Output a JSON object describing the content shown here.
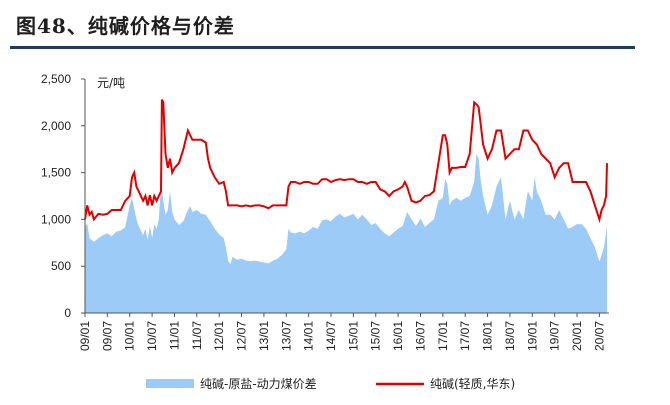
{
  "header": {
    "title": "图48、纯碱价格与价差"
  },
  "chart_data": {
    "type": "area+line",
    "unit_label": "元/吨",
    "ylim": [
      0,
      2500
    ],
    "yticks": [
      "0",
      "500",
      "1,000",
      "1,500",
      "2,000",
      "2,500"
    ],
    "ytick_values": [
      0,
      500,
      1000,
      1500,
      2000,
      2500
    ],
    "xlim": [
      2009.0,
      2020.67
    ],
    "xticks": [
      "09/01",
      "09/07",
      "10/01",
      "10/07",
      "11/01",
      "11/07",
      "12/01",
      "12/07",
      "13/01",
      "13/07",
      "14/01",
      "14/07",
      "15/01",
      "15/07",
      "16/01",
      "16/07",
      "17/01",
      "17/07",
      "18/01",
      "18/07",
      "19/01",
      "19/07",
      "20/01",
      "20/07"
    ],
    "xtick_values": [
      2009.0,
      2009.5,
      2010.0,
      2010.5,
      2011.0,
      2011.5,
      2012.0,
      2012.5,
      2013.0,
      2013.5,
      2014.0,
      2014.5,
      2015.0,
      2015.5,
      2016.0,
      2016.5,
      2017.0,
      2017.5,
      2018.0,
      2018.5,
      2019.0,
      2019.5,
      2020.0,
      2020.5
    ],
    "series": [
      {
        "name": "纯碱-原盐-动力煤价差",
        "type": "area",
        "color": "#9ccbf7",
        "points": [
          [
            2009.0,
            920
          ],
          [
            2009.05,
            960
          ],
          [
            2009.1,
            800
          ],
          [
            2009.2,
            760
          ],
          [
            2009.3,
            800
          ],
          [
            2009.4,
            830
          ],
          [
            2009.5,
            850
          ],
          [
            2009.6,
            820
          ],
          [
            2009.7,
            870
          ],
          [
            2009.8,
            880
          ],
          [
            2009.9,
            920
          ],
          [
            2010.0,
            1150
          ],
          [
            2010.05,
            1230
          ],
          [
            2010.1,
            1120
          ],
          [
            2010.15,
            1000
          ],
          [
            2010.2,
            930
          ],
          [
            2010.3,
            830
          ],
          [
            2010.35,
            900
          ],
          [
            2010.4,
            780
          ],
          [
            2010.45,
            930
          ],
          [
            2010.5,
            800
          ],
          [
            2010.55,
            950
          ],
          [
            2010.6,
            900
          ],
          [
            2010.65,
            1000
          ],
          [
            2010.7,
            1380
          ],
          [
            2010.75,
            1200
          ],
          [
            2010.8,
            1050
          ],
          [
            2010.85,
            1100
          ],
          [
            2010.9,
            1300
          ],
          [
            2010.95,
            1080
          ],
          [
            2011.0,
            1000
          ],
          [
            2011.1,
            940
          ],
          [
            2011.2,
            980
          ],
          [
            2011.3,
            1100
          ],
          [
            2011.35,
            1140
          ],
          [
            2011.4,
            1080
          ],
          [
            2011.5,
            1100
          ],
          [
            2011.6,
            1060
          ],
          [
            2011.7,
            1050
          ],
          [
            2011.8,
            980
          ],
          [
            2011.9,
            900
          ],
          [
            2012.0,
            840
          ],
          [
            2012.1,
            800
          ],
          [
            2012.15,
            700
          ],
          [
            2012.2,
            560
          ],
          [
            2012.25,
            520
          ],
          [
            2012.3,
            600
          ],
          [
            2012.4,
            570
          ],
          [
            2012.5,
            580
          ],
          [
            2012.6,
            560
          ],
          [
            2012.7,
            555
          ],
          [
            2012.8,
            560
          ],
          [
            2012.9,
            550
          ],
          [
            2013.0,
            540
          ],
          [
            2013.1,
            530
          ],
          [
            2013.2,
            560
          ],
          [
            2013.3,
            580
          ],
          [
            2013.4,
            620
          ],
          [
            2013.5,
            680
          ],
          [
            2013.55,
            900
          ],
          [
            2013.6,
            860
          ],
          [
            2013.7,
            850
          ],
          [
            2013.8,
            870
          ],
          [
            2013.9,
            850
          ],
          [
            2014.0,
            880
          ],
          [
            2014.1,
            920
          ],
          [
            2014.2,
            900
          ],
          [
            2014.3,
            990
          ],
          [
            2014.4,
            1000
          ],
          [
            2014.5,
            980
          ],
          [
            2014.6,
            1030
          ],
          [
            2014.7,
            1060
          ],
          [
            2014.8,
            1020
          ],
          [
            2014.9,
            1040
          ],
          [
            2015.0,
            1060
          ],
          [
            2015.1,
            1000
          ],
          [
            2015.2,
            1050
          ],
          [
            2015.3,
            1000
          ],
          [
            2015.4,
            940
          ],
          [
            2015.5,
            960
          ],
          [
            2015.6,
            900
          ],
          [
            2015.7,
            850
          ],
          [
            2015.8,
            820
          ],
          [
            2015.9,
            860
          ],
          [
            2016.0,
            900
          ],
          [
            2016.1,
            930
          ],
          [
            2016.15,
            1000
          ],
          [
            2016.2,
            1080
          ],
          [
            2016.3,
            1000
          ],
          [
            2016.4,
            930
          ],
          [
            2016.5,
            1010
          ],
          [
            2016.6,
            920
          ],
          [
            2016.7,
            960
          ],
          [
            2016.8,
            1000
          ],
          [
            2016.9,
            1200
          ],
          [
            2017.0,
            1230
          ],
          [
            2017.05,
            1430
          ],
          [
            2017.1,
            1380
          ],
          [
            2017.15,
            1150
          ],
          [
            2017.2,
            1200
          ],
          [
            2017.3,
            1230
          ],
          [
            2017.4,
            1200
          ],
          [
            2017.5,
            1230
          ],
          [
            2017.6,
            1250
          ],
          [
            2017.7,
            1400
          ],
          [
            2017.75,
            1700
          ],
          [
            2017.8,
            1650
          ],
          [
            2017.85,
            1400
          ],
          [
            2017.9,
            1250
          ],
          [
            2018.0,
            1050
          ],
          [
            2018.1,
            1150
          ],
          [
            2018.2,
            1350
          ],
          [
            2018.3,
            1450
          ],
          [
            2018.4,
            1000
          ],
          [
            2018.5,
            1200
          ],
          [
            2018.6,
            1000
          ],
          [
            2018.7,
            1100
          ],
          [
            2018.8,
            1000
          ],
          [
            2018.9,
            1300
          ],
          [
            2019.0,
            1200
          ],
          [
            2019.05,
            1450
          ],
          [
            2019.1,
            1300
          ],
          [
            2019.2,
            1200
          ],
          [
            2019.3,
            1050
          ],
          [
            2019.4,
            1050
          ],
          [
            2019.5,
            1000
          ],
          [
            2019.6,
            1100
          ],
          [
            2019.7,
            1000
          ],
          [
            2019.8,
            900
          ],
          [
            2019.9,
            920
          ],
          [
            2020.0,
            950
          ],
          [
            2020.1,
            950
          ],
          [
            2020.2,
            900
          ],
          [
            2020.3,
            800
          ],
          [
            2020.4,
            700
          ],
          [
            2020.5,
            550
          ],
          [
            2020.55,
            620
          ],
          [
            2020.6,
            700
          ],
          [
            2020.67,
            930
          ]
        ]
      },
      {
        "name": "纯碱(轻质,华东)",
        "type": "line",
        "color": "#e00000",
        "points": [
          [
            2009.0,
            1000
          ],
          [
            2009.05,
            1150
          ],
          [
            2009.1,
            1050
          ],
          [
            2009.15,
            1080
          ],
          [
            2009.2,
            1000
          ],
          [
            2009.3,
            1060
          ],
          [
            2009.4,
            1050
          ],
          [
            2009.5,
            1060
          ],
          [
            2009.6,
            1100
          ],
          [
            2009.7,
            1100
          ],
          [
            2009.8,
            1100
          ],
          [
            2009.9,
            1200
          ],
          [
            2010.0,
            1250
          ],
          [
            2010.05,
            1450
          ],
          [
            2010.1,
            1500
          ],
          [
            2010.15,
            1350
          ],
          [
            2010.2,
            1300
          ],
          [
            2010.3,
            1200
          ],
          [
            2010.35,
            1250
          ],
          [
            2010.4,
            1150
          ],
          [
            2010.45,
            1260
          ],
          [
            2010.5,
            1150
          ],
          [
            2010.55,
            1250
          ],
          [
            2010.6,
            1200
          ],
          [
            2010.65,
            1250
          ],
          [
            2010.7,
            1300
          ],
          [
            2010.72,
            2280
          ],
          [
            2010.75,
            2250
          ],
          [
            2010.8,
            1700
          ],
          [
            2010.85,
            1550
          ],
          [
            2010.9,
            1650
          ],
          [
            2010.95,
            1500
          ],
          [
            2011.0,
            1550
          ],
          [
            2011.1,
            1600
          ],
          [
            2011.2,
            1750
          ],
          [
            2011.3,
            1950
          ],
          [
            2011.35,
            1900
          ],
          [
            2011.4,
            1850
          ],
          [
            2011.5,
            1850
          ],
          [
            2011.6,
            1850
          ],
          [
            2011.7,
            1820
          ],
          [
            2011.75,
            1650
          ],
          [
            2011.8,
            1550
          ],
          [
            2011.9,
            1450
          ],
          [
            2012.0,
            1380
          ],
          [
            2012.1,
            1400
          ],
          [
            2012.15,
            1300
          ],
          [
            2012.2,
            1150
          ],
          [
            2012.3,
            1150
          ],
          [
            2012.4,
            1150
          ],
          [
            2012.5,
            1140
          ],
          [
            2012.6,
            1150
          ],
          [
            2012.7,
            1140
          ],
          [
            2012.8,
            1150
          ],
          [
            2012.9,
            1150
          ],
          [
            2013.0,
            1140
          ],
          [
            2013.1,
            1120
          ],
          [
            2013.2,
            1150
          ],
          [
            2013.3,
            1150
          ],
          [
            2013.4,
            1150
          ],
          [
            2013.5,
            1150
          ],
          [
            2013.55,
            1350
          ],
          [
            2013.6,
            1400
          ],
          [
            2013.7,
            1400
          ],
          [
            2013.8,
            1380
          ],
          [
            2013.9,
            1400
          ],
          [
            2014.0,
            1400
          ],
          [
            2014.1,
            1380
          ],
          [
            2014.2,
            1380
          ],
          [
            2014.3,
            1430
          ],
          [
            2014.4,
            1430
          ],
          [
            2014.5,
            1400
          ],
          [
            2014.6,
            1420
          ],
          [
            2014.7,
            1430
          ],
          [
            2014.8,
            1420
          ],
          [
            2014.9,
            1430
          ],
          [
            2015.0,
            1430
          ],
          [
            2015.1,
            1400
          ],
          [
            2015.2,
            1400
          ],
          [
            2015.3,
            1380
          ],
          [
            2015.4,
            1400
          ],
          [
            2015.5,
            1400
          ],
          [
            2015.6,
            1320
          ],
          [
            2015.7,
            1300
          ],
          [
            2015.8,
            1250
          ],
          [
            2015.9,
            1300
          ],
          [
            2016.0,
            1320
          ],
          [
            2016.1,
            1350
          ],
          [
            2016.15,
            1400
          ],
          [
            2016.2,
            1350
          ],
          [
            2016.3,
            1200
          ],
          [
            2016.4,
            1180
          ],
          [
            2016.5,
            1200
          ],
          [
            2016.6,
            1250
          ],
          [
            2016.7,
            1260
          ],
          [
            2016.8,
            1300
          ],
          [
            2016.9,
            1600
          ],
          [
            2017.0,
            1900
          ],
          [
            2017.05,
            1900
          ],
          [
            2017.1,
            1800
          ],
          [
            2017.15,
            1500
          ],
          [
            2017.2,
            1550
          ],
          [
            2017.3,
            1550
          ],
          [
            2017.4,
            1560
          ],
          [
            2017.5,
            1560
          ],
          [
            2017.6,
            1700
          ],
          [
            2017.7,
            2250
          ],
          [
            2017.75,
            2230
          ],
          [
            2017.8,
            2200
          ],
          [
            2017.85,
            2000
          ],
          [
            2017.9,
            1800
          ],
          [
            2018.0,
            1650
          ],
          [
            2018.1,
            1750
          ],
          [
            2018.2,
            1950
          ],
          [
            2018.3,
            1950
          ],
          [
            2018.4,
            1650
          ],
          [
            2018.5,
            1700
          ],
          [
            2018.6,
            1750
          ],
          [
            2018.7,
            1750
          ],
          [
            2018.8,
            1950
          ],
          [
            2018.9,
            1950
          ],
          [
            2019.0,
            1850
          ],
          [
            2019.1,
            1800
          ],
          [
            2019.2,
            1700
          ],
          [
            2019.3,
            1650
          ],
          [
            2019.4,
            1600
          ],
          [
            2019.5,
            1450
          ],
          [
            2019.6,
            1550
          ],
          [
            2019.7,
            1600
          ],
          [
            2019.8,
            1600
          ],
          [
            2019.9,
            1400
          ],
          [
            2020.0,
            1400
          ],
          [
            2020.1,
            1400
          ],
          [
            2020.2,
            1400
          ],
          [
            2020.3,
            1300
          ],
          [
            2020.4,
            1150
          ],
          [
            2020.5,
            1000
          ],
          [
            2020.55,
            1100
          ],
          [
            2020.6,
            1150
          ],
          [
            2020.65,
            1250
          ],
          [
            2020.67,
            1600
          ]
        ]
      }
    ],
    "legend": {
      "position": "bottom"
    }
  }
}
